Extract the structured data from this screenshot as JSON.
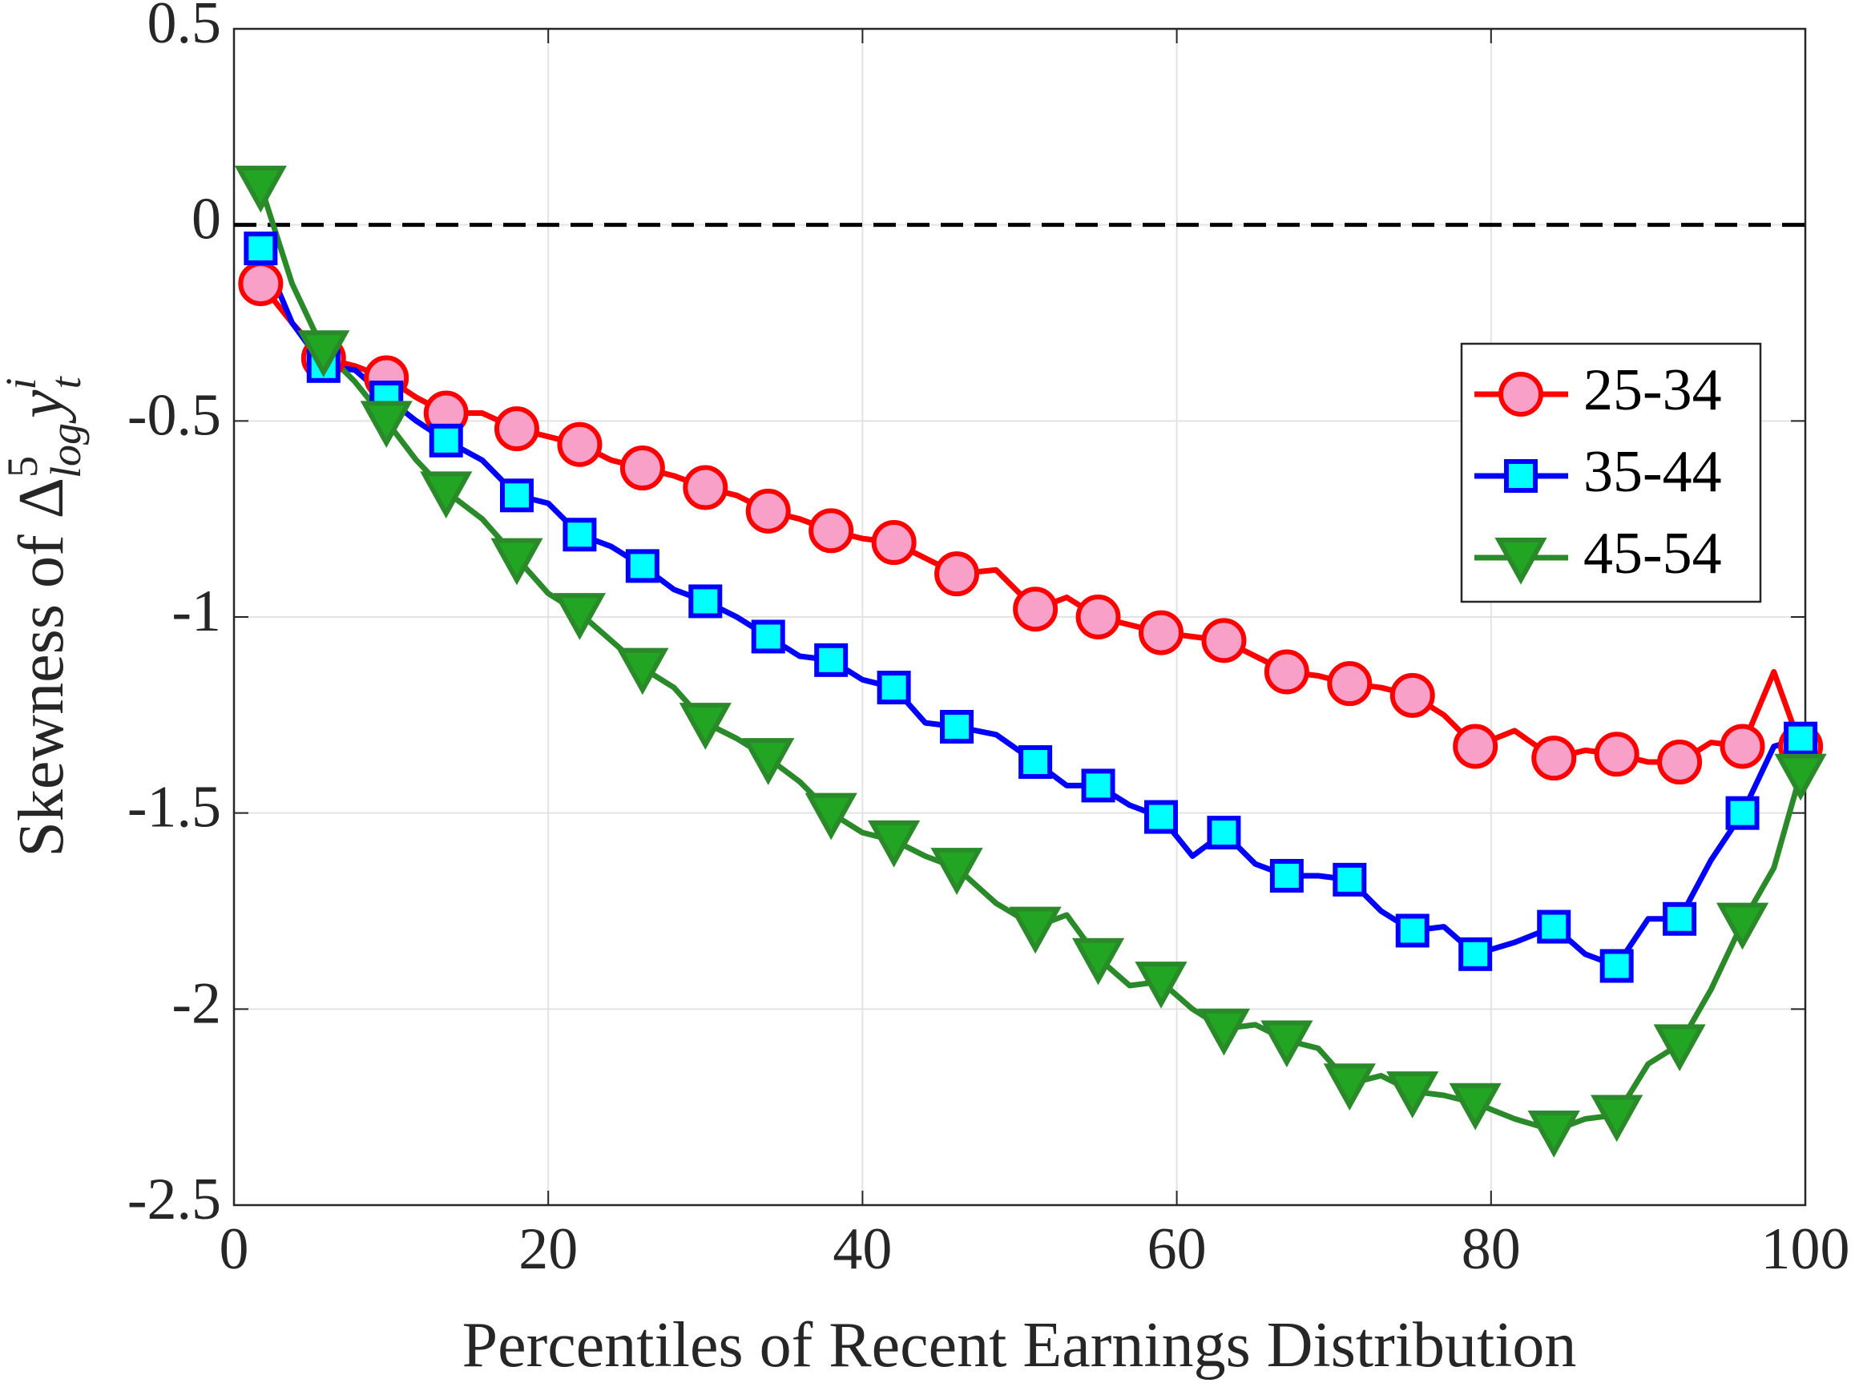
{
  "chart_data": {
    "type": "line",
    "xlabel": "Percentiles of Recent Earnings Distribution",
    "ylabel": {
      "text": "Skewness of",
      "symbol": "Δ",
      "sup": "5",
      "sub": "log",
      "var": "y",
      "var_sup": "i",
      "var_sub": "t"
    },
    "x": [
      1.7,
      3.7,
      5.7,
      7.7,
      9.7,
      11.6,
      13.5,
      15.8,
      18,
      20,
      22,
      24,
      26,
      28,
      30,
      32,
      34,
      36,
      38,
      40,
      42,
      44,
      46,
      48.5,
      51,
      53,
      55,
      57,
      59,
      61,
      63,
      65,
      67,
      69,
      71,
      73,
      75,
      77,
      79,
      81.5,
      84,
      86,
      88,
      90,
      92,
      94,
      96,
      98,
      99.7
    ],
    "marker_every": 2,
    "series": [
      {
        "name": "25-34",
        "color": "#ff0000",
        "marker": "circle",
        "marker_fill": "#f9a0c8",
        "values": [
          -0.15,
          -0.25,
          -0.34,
          -0.36,
          -0.39,
          -0.44,
          -0.48,
          -0.48,
          -0.52,
          -0.54,
          -0.56,
          -0.6,
          -0.62,
          -0.64,
          -0.67,
          -0.69,
          -0.73,
          -0.75,
          -0.78,
          -0.8,
          -0.81,
          -0.85,
          -0.89,
          -0.88,
          -0.98,
          -0.95,
          -1.0,
          -1.02,
          -1.04,
          -1.05,
          -1.06,
          -1.1,
          -1.14,
          -1.15,
          -1.17,
          -1.18,
          -1.2,
          -1.25,
          -1.33,
          -1.29,
          -1.36,
          -1.34,
          -1.35,
          -1.37,
          -1.37,
          -1.32,
          -1.33,
          -1.14,
          -1.33
        ]
      },
      {
        "name": "35-44",
        "color": "#0000ff",
        "marker": "square",
        "marker_fill": "#00ffff",
        "values": [
          -0.06,
          -0.25,
          -0.36,
          -0.37,
          -0.44,
          -0.5,
          -0.55,
          -0.6,
          -0.69,
          -0.71,
          -0.79,
          -0.82,
          -0.87,
          -0.93,
          -0.96,
          -1.0,
          -1.05,
          -1.1,
          -1.11,
          -1.16,
          -1.18,
          -1.27,
          -1.28,
          -1.3,
          -1.37,
          -1.43,
          -1.43,
          -1.48,
          -1.51,
          -1.61,
          -1.55,
          -1.63,
          -1.66,
          -1.66,
          -1.67,
          -1.75,
          -1.8,
          -1.79,
          -1.86,
          -1.83,
          -1.79,
          -1.86,
          -1.89,
          -1.77,
          -1.77,
          -1.62,
          -1.5,
          -1.33,
          -1.31
        ]
      },
      {
        "name": "45-54",
        "color": "#2a8a2a",
        "marker": "triangle-down",
        "marker_fill": "#22a522",
        "values": [
          0.1,
          -0.15,
          -0.32,
          -0.4,
          -0.5,
          -0.6,
          -0.68,
          -0.75,
          -0.85,
          -0.94,
          -0.99,
          -1.06,
          -1.13,
          -1.18,
          -1.27,
          -1.31,
          -1.36,
          -1.42,
          -1.5,
          -1.55,
          -1.57,
          -1.61,
          -1.64,
          -1.73,
          -1.79,
          -1.76,
          -1.87,
          -1.94,
          -1.93,
          -2.0,
          -2.05,
          -2.04,
          -2.08,
          -2.1,
          -2.19,
          -2.17,
          -2.21,
          -2.22,
          -2.24,
          -2.28,
          -2.31,
          -2.28,
          -2.27,
          -2.14,
          -2.09,
          -1.95,
          -1.78,
          -1.64,
          -1.4
        ]
      }
    ],
    "xlim": [
      0,
      100
    ],
    "xticks": [
      0,
      20,
      40,
      60,
      80,
      100
    ],
    "ylim": [
      -2.5,
      0.5
    ],
    "yticks": [
      -2.5,
      -2,
      -1.5,
      -1,
      -0.5,
      0,
      0.5
    ],
    "hline": 0,
    "grid": true,
    "legend": "east"
  }
}
